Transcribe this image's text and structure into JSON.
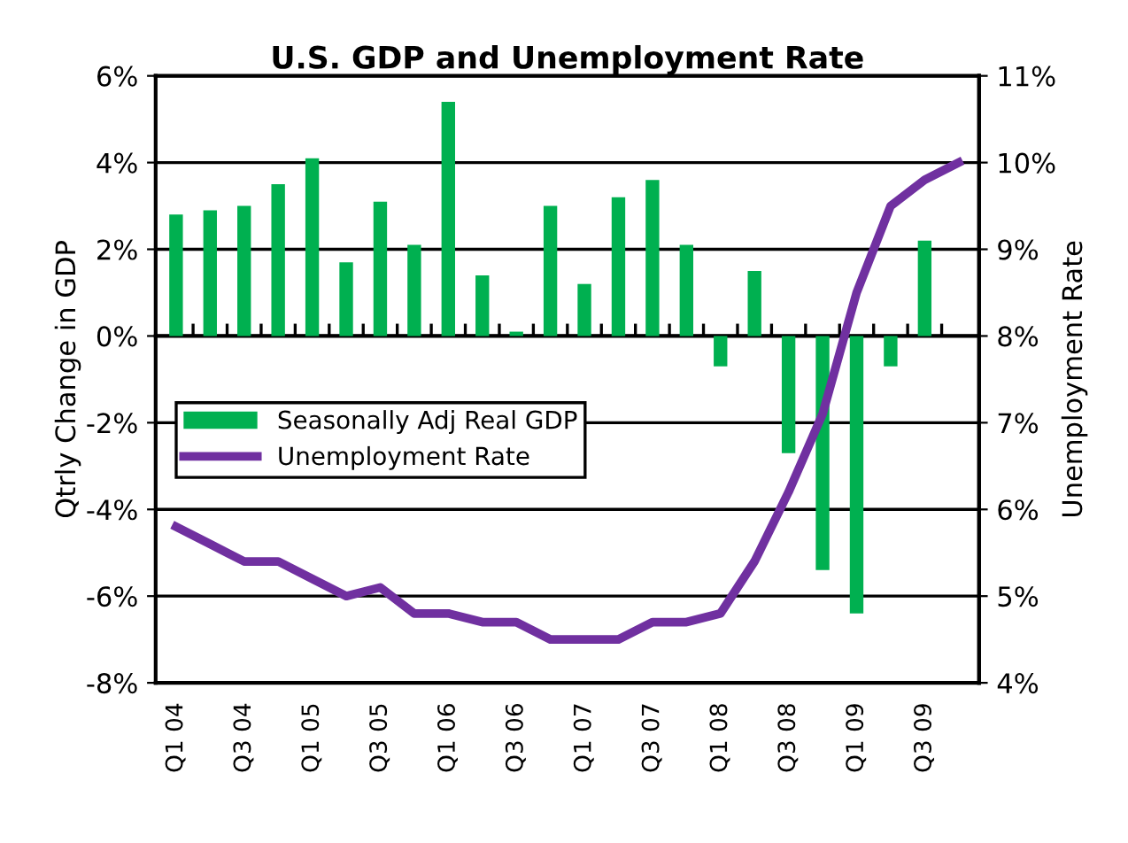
{
  "chart_data": {
    "type": "bar",
    "title": "U.S. GDP and Unemployment Rate",
    "ylabel": "Qtrly Change in GDP",
    "y2label": "Unemployment Rate",
    "categories": [
      "Q1 04",
      null,
      "Q3 04",
      null,
      "Q1 05",
      null,
      "Q3 05",
      null,
      "Q1 06",
      null,
      "Q3 06",
      null,
      "Q1 07",
      null,
      "Q3 07",
      null,
      "Q1 08",
      null,
      "Q3 08",
      null,
      "Q1 09",
      null,
      "Q3 09",
      null
    ],
    "series": [
      {
        "name": "Seasonally Adj Real GDP",
        "color": "#00b050",
        "values": [
          2.8,
          2.9,
          3.0,
          3.5,
          4.1,
          1.7,
          3.1,
          2.1,
          5.4,
          1.4,
          0.1,
          3.0,
          1.2,
          3.2,
          3.6,
          2.1,
          -0.7,
          1.5,
          -2.7,
          -5.4,
          -6.4,
          -0.7,
          2.2,
          null
        ]
      },
      {
        "name": "Unemployment Rate",
        "type": "line",
        "axis": "y2",
        "color": "#7030a0",
        "values": [
          5.8,
          5.6,
          5.4,
          5.4,
          5.2,
          5.0,
          5.1,
          4.8,
          4.8,
          4.7,
          4.7,
          4.5,
          4.5,
          4.5,
          4.7,
          4.7,
          4.8,
          5.4,
          6.2,
          7.1,
          8.5,
          9.5,
          9.8,
          10.0
        ]
      }
    ],
    "ylim": [
      -8,
      6
    ],
    "yticks": [
      {
        "value": -8,
        "label": "-8%"
      },
      {
        "value": -6,
        "label": "-6%"
      },
      {
        "value": -4,
        "label": "-4%"
      },
      {
        "value": -2,
        "label": "-2%"
      },
      {
        "value": 0,
        "label": "0%"
      },
      {
        "value": 2,
        "label": "2%"
      },
      {
        "value": 4,
        "label": "4%"
      },
      {
        "value": 6,
        "label": "6%"
      }
    ],
    "y2lim": [
      4,
      11
    ],
    "y2ticks": [
      {
        "value": 4,
        "label": "4%"
      },
      {
        "value": 5,
        "label": "5%"
      },
      {
        "value": 6,
        "label": "6%"
      },
      {
        "value": 7,
        "label": "7%"
      },
      {
        "value": 8,
        "label": "8%"
      },
      {
        "value": 9,
        "label": "9%"
      },
      {
        "value": 10,
        "label": "10%"
      },
      {
        "value": 11,
        "label": "11%"
      }
    ],
    "grid": "y",
    "legend": "left",
    "marker": "none",
    "line_style": "solid"
  }
}
